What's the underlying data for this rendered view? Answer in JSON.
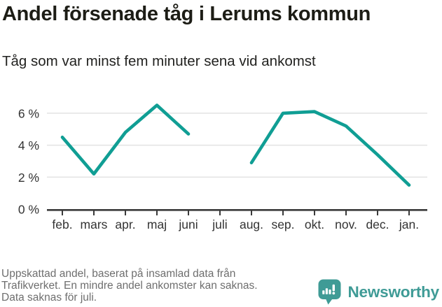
{
  "title": "Andel försenade tåg i Lerums kommun",
  "subtitle": "Tåg som var minst fem minuter sena vid ankomst",
  "chart_data": {
    "type": "line",
    "categories": [
      "feb.",
      "mars",
      "apr.",
      "maj",
      "juni",
      "juli",
      "aug.",
      "sep.",
      "okt.",
      "nov.",
      "dec.",
      "jan."
    ],
    "values": [
      4.5,
      2.2,
      4.8,
      6.5,
      4.7,
      null,
      2.9,
      6.0,
      6.1,
      5.2,
      3.4,
      1.5
    ],
    "missing_category": "juli",
    "title": "Andel försenade tåg i Lerums kommun",
    "subtitle": "Tåg som var minst fem minuter sena vid ankomst",
    "xlabel": "",
    "ylabel": "",
    "ylim": [
      0,
      7
    ],
    "yticks": [
      0,
      2,
      4,
      6
    ],
    "ytick_labels": [
      "0 %",
      "2 %",
      "4 %",
      "6 %"
    ],
    "grid": true,
    "legend_position": "none",
    "line_color": "#109e94"
  },
  "colors": {
    "line": "#109e94",
    "grid": "#e3e3e3",
    "axis": "#3a3a3a",
    "tick_text": "#333333",
    "footer_text": "#6e6e6e",
    "brand_teal": "#3f9b96"
  },
  "footer": {
    "lines": [
      "Uppskattad andel, baserat på insamlad data från",
      "Trafikverket. En mindre andel ankomster kan saknas.",
      "Data saknas för juli."
    ]
  },
  "branding": {
    "name": "Newsworthy"
  }
}
